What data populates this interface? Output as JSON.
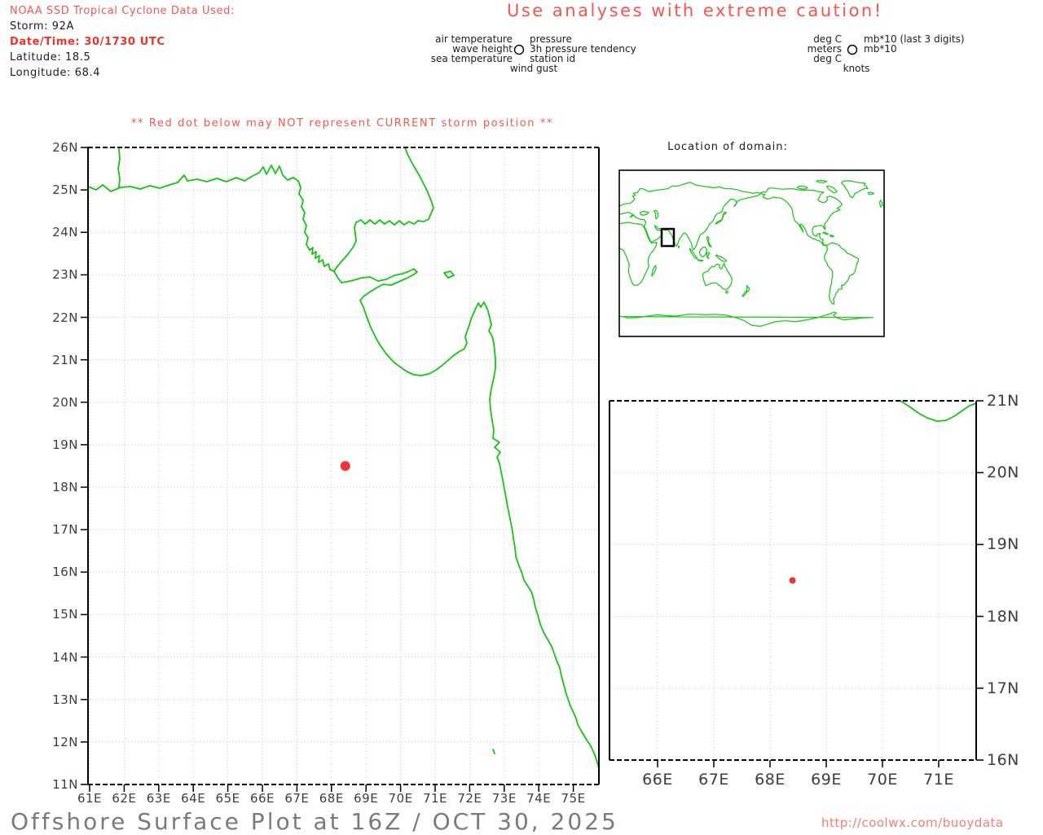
{
  "header": {
    "source_line": "NOAA SSD Tropical Cyclone Data Used:",
    "storm": "Storm: 92A",
    "datetime": "Date/Time: 30/1730 UTC",
    "latitude": "Latitude: 18.5",
    "longitude": "Longitude: 68.4"
  },
  "caution_title": "Use analyses with extreme caution!",
  "station_legend": {
    "left_labels": [
      "air temperature",
      "wave height",
      "sea temperature"
    ],
    "right_labels": [
      "pressure",
      "3h pressure tendency",
      "station id"
    ],
    "bottom_label": "wind gust"
  },
  "units_legend": {
    "left_labels": [
      "deg C",
      "meters",
      "deg C"
    ],
    "right_labels": [
      "mb*10 (last 3 digits)",
      "mb*10"
    ],
    "bottom_label": "knots"
  },
  "warning": "** Red dot below may NOT represent CURRENT storm position **",
  "main_map": {
    "x_ticks": [
      "61E",
      "62E",
      "63E",
      "64E",
      "65E",
      "66E",
      "67E",
      "68E",
      "69E",
      "70E",
      "71E",
      "72E",
      "73E",
      "74E",
      "75E"
    ],
    "y_ticks": [
      "26N",
      "25N",
      "24N",
      "23N",
      "22N",
      "21N",
      "20N",
      "19N",
      "18N",
      "17N",
      "16N",
      "15N",
      "14N",
      "13N",
      "12N",
      "11N"
    ],
    "storm_dot": {
      "lon": 68.4,
      "lat": 18.5
    }
  },
  "inset": {
    "title": "Location of domain:"
  },
  "detail_map": {
    "x_ticks": [
      "66E",
      "67E",
      "68E",
      "69E",
      "70E",
      "71E"
    ],
    "y_ticks": [
      "21N",
      "20N",
      "19N",
      "18N",
      "17N",
      "16N"
    ],
    "storm_dot": {
      "lon": 68.4,
      "lat": 18.5
    }
  },
  "footer": {
    "title": "Offshore Surface Plot at 16Z / OCT 30, 2025",
    "url": "http://coolwx.com/buoydata"
  },
  "colors": {
    "accent_red": "#f9544f",
    "alert_red": "#f5302b",
    "coast_green": "#16c316",
    "grid_gray": "#c6c6c6",
    "dot_red": "#ee3434",
    "frame_black": "#000000"
  }
}
